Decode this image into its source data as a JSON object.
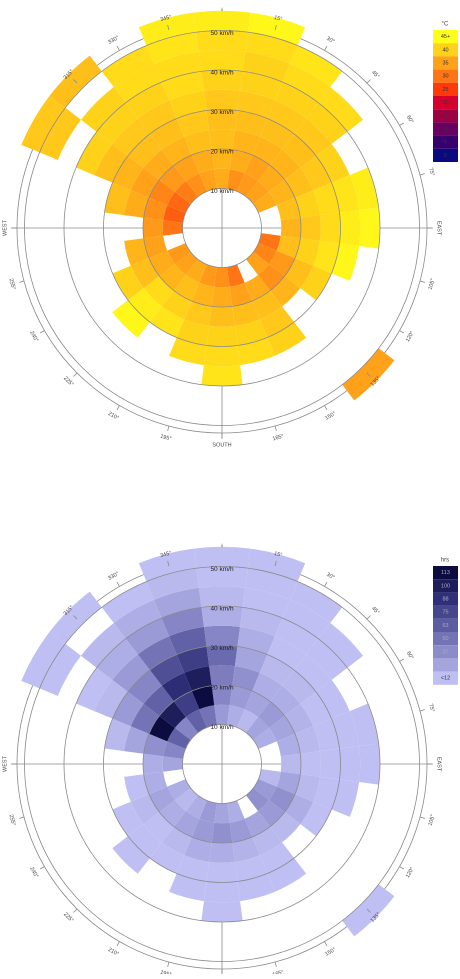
{
  "chart_data": [
    {
      "type": "polar-heatmap",
      "directions": [
        0,
        15,
        30,
        45,
        60,
        75,
        90,
        105,
        120,
        135,
        150,
        165,
        180,
        195,
        210,
        225,
        240,
        255,
        270,
        285,
        300,
        315,
        330,
        345
      ],
      "speed_bins": [
        10,
        15,
        20,
        25,
        30,
        35,
        40,
        45,
        50,
        55
      ],
      "values": [
        [
          36,
          37,
          38,
          38,
          39,
          40,
          41,
          41,
          43
        ],
        [
          33,
          36,
          37,
          38,
          39,
          40,
          40,
          41,
          44
        ],
        [
          34,
          35,
          37,
          38,
          39,
          40,
          41,
          42,
          null
        ],
        [
          35,
          36,
          37,
          38,
          39,
          40,
          41,
          null,
          null
        ],
        [
          36,
          37,
          38,
          39,
          40,
          null,
          null,
          null,
          null
        ],
        [
          null,
          38,
          40,
          41,
          42,
          43,
          null,
          null,
          null
        ],
        [
          null,
          37,
          39,
          41,
          43,
          44,
          null,
          null,
          null
        ],
        [
          30,
          38,
          40,
          42,
          44,
          null,
          null,
          null,
          null
        ],
        [
          32,
          34,
          38,
          40,
          null,
          null,
          null,
          null,
          null
        ],
        [
          35,
          33,
          37,
          null,
          null,
          null,
          null,
          null,
          35
        ],
        [
          null,
          36,
          38,
          39,
          40,
          null,
          null,
          null,
          null
        ],
        [
          30,
          35,
          38,
          40,
          41,
          null,
          null,
          null,
          null
        ],
        [
          33,
          36,
          38,
          40,
          41,
          42,
          null,
          null,
          null
        ],
        [
          34,
          37,
          39,
          40,
          41,
          null,
          null,
          null,
          null
        ],
        [
          36,
          38,
          40,
          42,
          null,
          null,
          null,
          null,
          null
        ],
        [
          35,
          37,
          41,
          43,
          44,
          null,
          null,
          null,
          null
        ],
        [
          34,
          36,
          38,
          40,
          null,
          null,
          null,
          null,
          null
        ],
        [
          null,
          35,
          37,
          null,
          null,
          null,
          null,
          null,
          null
        ],
        [
          30,
          34,
          null,
          null,
          null,
          null,
          null,
          null,
          null
        ],
        [
          28,
          33,
          36,
          38,
          null,
          null,
          null,
          null,
          null
        ],
        [
          29,
          32,
          35,
          37,
          38,
          40,
          null,
          39,
          39
        ],
        [
          31,
          34,
          36,
          38,
          39,
          40,
          40,
          null,
          38
        ],
        [
          33,
          35,
          37,
          38,
          39,
          40,
          41,
          41,
          null
        ],
        [
          35,
          36,
          38,
          39,
          40,
          41,
          41,
          42,
          43
        ]
      ],
      "ring_ticks": [
        {
          "value": 10,
          "label": "10 km/h"
        },
        {
          "value": 20,
          "label": "20 km/h"
        },
        {
          "value": 30,
          "label": "30 km/h"
        },
        {
          "value": 40,
          "label": "40 km/h"
        },
        {
          "value": 50,
          "label": "50 km/h"
        }
      ],
      "compass_labels": [
        {
          "angle": 15,
          "label": "15°"
        },
        {
          "angle": 30,
          "label": "30°"
        },
        {
          "angle": 45,
          "label": "45°"
        },
        {
          "angle": 60,
          "label": "60°"
        },
        {
          "angle": 75,
          "label": "75°"
        },
        {
          "angle": 90,
          "label": "EAST"
        },
        {
          "angle": 105,
          "label": "105°"
        },
        {
          "angle": 120,
          "label": "120°"
        },
        {
          "angle": 135,
          "label": "135°"
        },
        {
          "angle": 150,
          "label": "150°"
        },
        {
          "angle": 165,
          "label": "165°"
        },
        {
          "angle": 180,
          "label": "SOUTH"
        },
        {
          "angle": 195,
          "label": "195°"
        },
        {
          "angle": 210,
          "label": "210°"
        },
        {
          "angle": 225,
          "label": "225°"
        },
        {
          "angle": 240,
          "label": "240°"
        },
        {
          "angle": 255,
          "label": "255°"
        },
        {
          "angle": 270,
          "label": "WEST"
        },
        {
          "angle": 315,
          "label": "315°"
        },
        {
          "angle": 330,
          "label": "330°"
        },
        {
          "angle": 345,
          "label": "345°"
        }
      ],
      "colorbar_title": "°C",
      "colorbar": {
        "ticks": [
          {
            "value": 45,
            "label": "45+"
          },
          40,
          35,
          30,
          25,
          20,
          15,
          10,
          5,
          0
        ],
        "colors": [
          "#ffff1a",
          "#ffd21a",
          "#ffa21a",
          "#ff7414",
          "#ff3a0a",
          "#d6002e",
          "#9e0044",
          "#6a0060",
          "#38006e",
          "#0a0a80"
        ]
      }
    },
    {
      "type": "polar-heatmap",
      "directions": [
        0,
        15,
        30,
        45,
        60,
        75,
        90,
        105,
        120,
        135,
        150,
        165,
        180,
        195,
        210,
        225,
        240,
        255,
        270,
        285,
        300,
        315,
        330,
        345
      ],
      "speed_bins": [
        10,
        15,
        20,
        25,
        30,
        35,
        40,
        45,
        50,
        55
      ],
      "values": [
        [
          30,
          40,
          45,
          55,
          40,
          20,
          15,
          10,
          8
        ],
        [
          20,
          30,
          35,
          25,
          20,
          15,
          10,
          8,
          8
        ],
        [
          15,
          25,
          20,
          15,
          12,
          10,
          8,
          8,
          null
        ],
        [
          25,
          30,
          20,
          15,
          12,
          10,
          8,
          null,
          null
        ],
        [
          20,
          25,
          18,
          12,
          10,
          null,
          null,
          null,
          null
        ],
        [
          null,
          20,
          15,
          12,
          10,
          8,
          null,
          null,
          null
        ],
        [
          null,
          15,
          12,
          10,
          8,
          8,
          null,
          null,
          null
        ],
        [
          15,
          25,
          15,
          10,
          8,
          null,
          null,
          null,
          null
        ],
        [
          30,
          35,
          20,
          10,
          null,
          null,
          null,
          null,
          null
        ],
        [
          35,
          30,
          15,
          null,
          null,
          null,
          null,
          null,
          8
        ],
        [
          null,
          25,
          15,
          10,
          8,
          null,
          null,
          null,
          null
        ],
        [
          20,
          30,
          18,
          12,
          8,
          null,
          null,
          null,
          null
        ],
        [
          25,
          35,
          20,
          12,
          10,
          8,
          null,
          null,
          null
        ],
        [
          30,
          30,
          20,
          12,
          10,
          null,
          null,
          null,
          null
        ],
        [
          20,
          25,
          15,
          10,
          null,
          null,
          null,
          null,
          null
        ],
        [
          15,
          20,
          12,
          10,
          8,
          null,
          null,
          null,
          null
        ],
        [
          20,
          25,
          15,
          10,
          null,
          null,
          null,
          null,
          null
        ],
        [
          null,
          20,
          12,
          null,
          null,
          null,
          null,
          null,
          null
        ],
        [
          25,
          20,
          null,
          null,
          null,
          null,
          null,
          null,
          null
        ],
        [
          40,
          35,
          25,
          15,
          null,
          null,
          null,
          null,
          null
        ],
        [
          60,
          113,
          50,
          30,
          15,
          10,
          null,
          8,
          8
        ],
        [
          40,
          100,
          60,
          40,
          30,
          20,
          15,
          null,
          8
        ],
        [
          60,
          80,
          90,
          70,
          50,
          30,
          20,
          10,
          null
        ],
        [
          50,
          113,
          100,
          80,
          60,
          40,
          25,
          15,
          10
        ]
      ],
      "ring_ticks": [
        {
          "value": 10,
          "label": "10 km/h"
        },
        {
          "value": 20,
          "label": "20 km/h"
        },
        {
          "value": 30,
          "label": "30 km/h"
        },
        {
          "value": 40,
          "label": "40 km/h"
        },
        {
          "value": 50,
          "label": "50 km/h"
        }
      ],
      "compass_labels": [
        {
          "angle": 15,
          "label": "15°"
        },
        {
          "angle": 30,
          "label": "30°"
        },
        {
          "angle": 45,
          "label": "45°"
        },
        {
          "angle": 60,
          "label": "60°"
        },
        {
          "angle": 75,
          "label": "75°"
        },
        {
          "angle": 90,
          "label": "EAST"
        },
        {
          "angle": 105,
          "label": "105°"
        },
        {
          "angle": 120,
          "label": "120°"
        },
        {
          "angle": 135,
          "label": "135°"
        },
        {
          "angle": 150,
          "label": "150°"
        },
        {
          "angle": 165,
          "label": "165°"
        },
        {
          "angle": 180,
          "label": "SOUTH"
        },
        {
          "angle": 195,
          "label": "195°"
        },
        {
          "angle": 210,
          "label": "210°"
        },
        {
          "angle": 225,
          "label": "225°"
        },
        {
          "angle": 240,
          "label": "240°"
        },
        {
          "angle": 255,
          "label": "255°"
        },
        {
          "angle": 270,
          "label": "WEST"
        },
        {
          "angle": 315,
          "label": "315°"
        },
        {
          "angle": 330,
          "label": "330°"
        },
        {
          "angle": 345,
          "label": "345°"
        }
      ],
      "colorbar_title": "hrs",
      "colorbar": {
        "ticks": [
          113,
          100,
          88,
          75,
          63,
          50,
          37,
          25,
          {
            "value": 12,
            "label": "<12"
          }
        ],
        "colors": [
          "#0c0c40",
          "#1e1e5c",
          "#30307a",
          "#46468e",
          "#5c5ca2",
          "#7373b6",
          "#8c8ccb",
          "#a4a4de",
          "#bfbff3"
        ]
      }
    }
  ]
}
